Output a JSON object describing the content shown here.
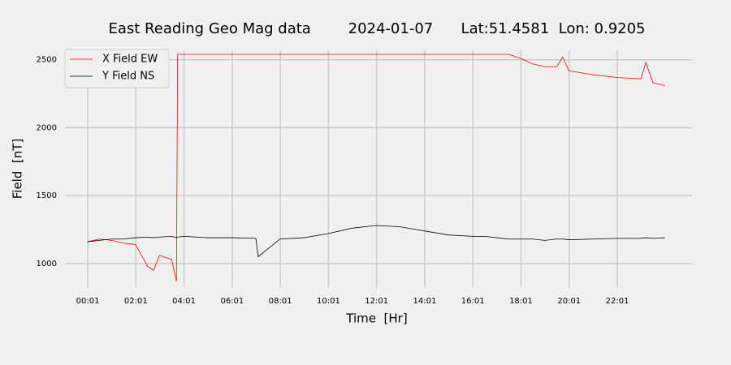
{
  "chart_data": {
    "type": "line",
    "title": "East Reading Geo Mag data        2024-01-07      Lat:51.4581  Lon: 0.9205",
    "x_label": "Time  [Hr]",
    "y_label": "Field  [nT]",
    "x": [
      0,
      0.5,
      1,
      1.5,
      2,
      2.5,
      2.75,
      3,
      3.5,
      3.7,
      3.75,
      4,
      5,
      6,
      7,
      7.1,
      8,
      9,
      10,
      11,
      12,
      13,
      14,
      15,
      16,
      16.5,
      17,
      17.5,
      18,
      18.5,
      19,
      19.5,
      19.75,
      20,
      21,
      22,
      23,
      23.2,
      23.5,
      24
    ],
    "series": [
      {
        "name": "X Field EW",
        "color": "#ff0000",
        "values": [
          1160,
          1180,
          1170,
          1150,
          1140,
          980,
          950,
          1060,
          1030,
          870,
          2540,
          2540,
          2540,
          2540,
          2540,
          2540,
          2540,
          2540,
          2540,
          2540,
          2540,
          2540,
          2540,
          2540,
          2540,
          2540,
          2540,
          2540,
          2510,
          2470,
          2450,
          2450,
          2520,
          2420,
          2390,
          2370,
          2360,
          2480,
          2330,
          2310
        ]
      },
      {
        "name": "Y Field NS",
        "color": "#000000",
        "values": [
          1160,
          1170,
          1180,
          1180,
          1190,
          1195,
          1190,
          1195,
          1200,
          1190,
          1195,
          1200,
          1190,
          1190,
          1185,
          1050,
          1180,
          1190,
          1220,
          1260,
          1280,
          1270,
          1240,
          1210,
          1200,
          1200,
          1190,
          1180,
          1180,
          1180,
          1170,
          1180,
          1180,
          1175,
          1180,
          1185,
          1185,
          1190,
          1185,
          1190
        ]
      }
    ],
    "xlim": [
      -0.93,
      25.12
    ],
    "ylim": [
      820,
      2570
    ],
    "xticks": [
      {
        "value": 0.0167,
        "label": "00:01"
      },
      {
        "value": 2.0167,
        "label": "02:01"
      },
      {
        "value": 4.0167,
        "label": "04:01"
      },
      {
        "value": 6.0167,
        "label": "06:01"
      },
      {
        "value": 8.0167,
        "label": "08:01"
      },
      {
        "value": 10.0167,
        "label": "10:01"
      },
      {
        "value": 12.0167,
        "label": "12:01"
      },
      {
        "value": 14.0167,
        "label": "14:01"
      },
      {
        "value": 16.0167,
        "label": "16:01"
      },
      {
        "value": 18.0167,
        "label": "18:01"
      },
      {
        "value": 20.0167,
        "label": "20:01"
      },
      {
        "value": 22.0167,
        "label": "22:01"
      }
    ],
    "yticks": [
      1000,
      1500,
      2000,
      2500
    ],
    "grid": true,
    "legend": "upper-left"
  }
}
